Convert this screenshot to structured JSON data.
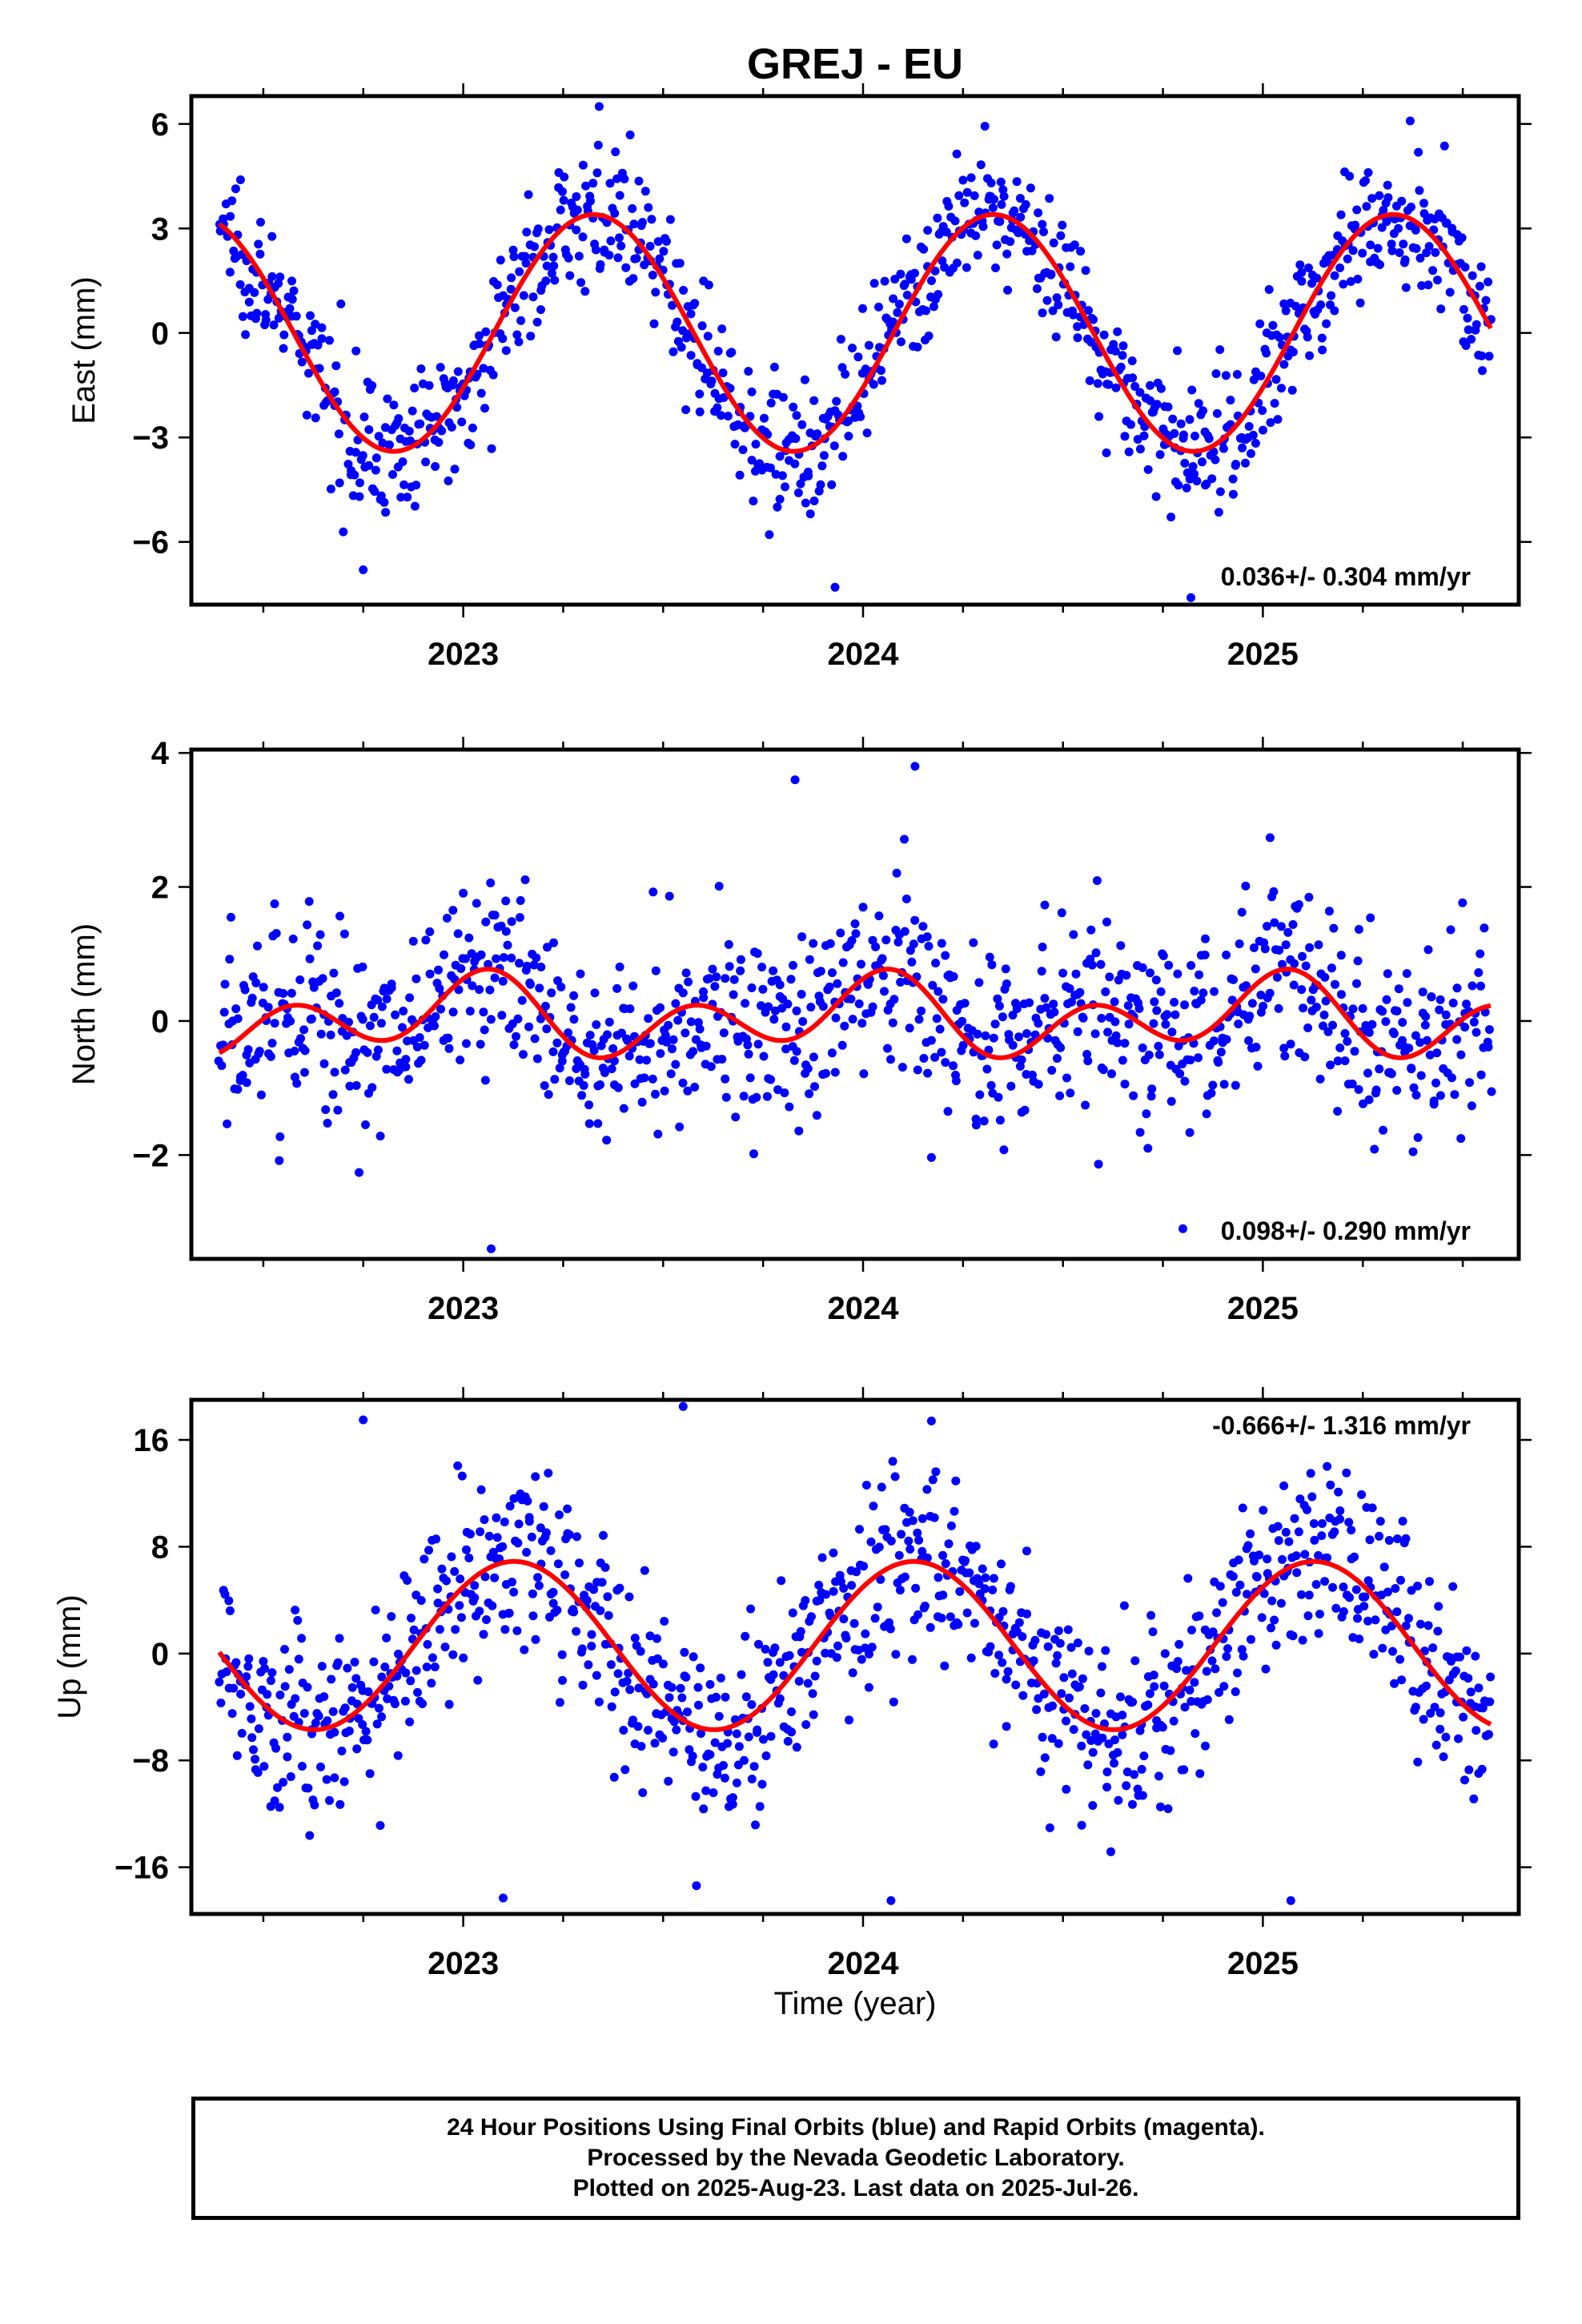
{
  "figure": {
    "title": "GREJ - EU",
    "xlabel": "Time (year)"
  },
  "chart_data": [
    {
      "type": "scatter",
      "ylabel": "East (mm)",
      "xlim": [
        2022.32,
        2025.64
      ],
      "ylim": [
        -7.8,
        6.8
      ],
      "xticks": [
        2023,
        2024,
        2025
      ],
      "yticks": [
        -6,
        -3,
        0,
        3,
        6
      ],
      "ytick_labels": [
        "−6",
        "−3",
        "0",
        "3",
        "6"
      ],
      "grid": false,
      "rate_label": "0.036+/- 0.304 mm/yr",
      "series": [
        {
          "name": "24 Hour Positions",
          "kind": "points",
          "color": "#0000ff",
          "x_start": 2022.39,
          "x_end": 2025.57,
          "n": 1000,
          "offset": 0,
          "annual_amp": 3.4,
          "annual_phase": 2.05,
          "semi_amp": 0.0,
          "semi_phase": 0,
          "noise_sd": 0.95,
          "outliers": [
            [
              2022.75,
              -6.8
            ],
            [
              2023.93,
              -7.3
            ],
            [
              2024.82,
              -7.6
            ],
            [
              2023.34,
              6.5
            ]
          ]
        },
        {
          "name": "Model fit",
          "kind": "line",
          "color": "#ff0000",
          "x_start": 2022.39,
          "x_end": 2025.57,
          "offset": 0,
          "annual_amp": 3.4,
          "annual_phase": 2.05,
          "semi_amp": 0.0,
          "semi_phase": 0
        }
      ]
    },
    {
      "type": "scatter",
      "ylabel": "North (mm)",
      "xlim": [
        2022.32,
        2025.64
      ],
      "ylim": [
        -3.55,
        4.05
      ],
      "xticks": [
        2023,
        2024,
        2025
      ],
      "yticks": [
        -2,
        0,
        2,
        4
      ],
      "ytick_labels": [
        "−2",
        "0",
        "2",
        "4"
      ],
      "grid": false,
      "rate_label": "0.098+/- 0.290 mm/yr",
      "series": [
        {
          "name": "24 Hour Positions",
          "kind": "points",
          "color": "#0000ff",
          "x_start": 2022.39,
          "x_end": 2025.57,
          "n": 1000,
          "offset": 0.05,
          "annual_amp": 0.3,
          "annual_phase": 0.0,
          "semi_amp": 0.45,
          "semi_phase": 0.9,
          "noise_sd": 0.75,
          "outliers": [
            [
              2023.07,
              -3.4
            ],
            [
              2024.13,
              3.8
            ],
            [
              2023.83,
              3.6
            ],
            [
              2024.8,
              -3.1
            ]
          ]
        },
        {
          "name": "Model fit",
          "kind": "line",
          "color": "#ff0000",
          "x_start": 2022.39,
          "x_end": 2025.57,
          "offset": 0.05,
          "annual_amp": 0.3,
          "annual_phase": 0.0,
          "semi_amp": 0.45,
          "semi_phase": 0.9
        }
      ]
    },
    {
      "type": "scatter",
      "ylabel": "Up (mm)",
      "xlim": [
        2022.32,
        2025.64
      ],
      "ylim": [
        -19.5,
        19.0
      ],
      "xticks": [
        2023,
        2024,
        2025
      ],
      "yticks": [
        -16,
        -8,
        0,
        8,
        16
      ],
      "ytick_labels": [
        "−16",
        "−8",
        "0",
        "8",
        "16"
      ],
      "grid": false,
      "rate_label": "-0.666+/- 1.316 mm/yr",
      "series": [
        {
          "name": "24 Hour Positions",
          "kind": "points",
          "color": "#0000ff",
          "x_start": 2022.39,
          "x_end": 2025.57,
          "n": 1000,
          "offset": 0.6,
          "annual_amp": 6.3,
          "annual_phase": 0.8,
          "semi_amp": 0.0,
          "semi_phase": 0,
          "noise_sd": 3.6,
          "outliers": [
            [
              2023.1,
              -18.3
            ],
            [
              2024.07,
              -18.5
            ],
            [
              2025.07,
              -18.5
            ],
            [
              2023.55,
              18.5
            ],
            [
              2022.75,
              17.5
            ]
          ]
        },
        {
          "name": "Model fit",
          "kind": "line",
          "color": "#ff0000",
          "x_start": 2022.39,
          "x_end": 2025.57,
          "offset": 0.6,
          "annual_amp": 6.3,
          "annual_phase": 0.8,
          "semi_amp": 0.0,
          "semi_phase": 0
        }
      ]
    }
  ],
  "footer": {
    "line1": "24 Hour Positions Using Final Orbits (blue) and Rapid Orbits (magenta).",
    "line2": "Processed by the Nevada Geodetic Laboratory.",
    "line3": "Plotted on 2025-Aug-23. Last data on 2025-Jul-26."
  }
}
